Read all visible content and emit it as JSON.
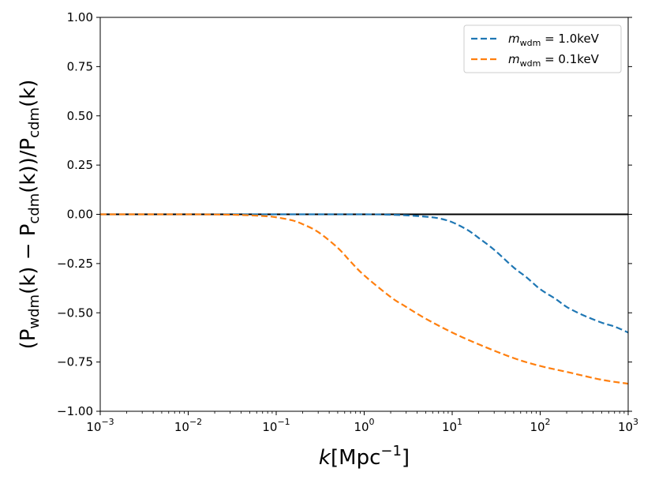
{
  "chart_data": {
    "type": "line",
    "xscale": "log",
    "xlim": [
      0.001,
      1000
    ],
    "ylim": [
      -1.0,
      1.0
    ],
    "xlabel": {
      "base": "k",
      "unit": "Mpc",
      "exp": "−1"
    },
    "ylabel": {
      "open": "(P",
      "sub1": "wdm",
      "mid1": "(k) − P",
      "sub2": "cdm",
      "mid2": "(k))/P",
      "sub3": "cdm",
      "end": "(k)"
    },
    "yticks": [
      {
        "value": 1.0,
        "label": "1.00"
      },
      {
        "value": 0.75,
        "label": "0.75"
      },
      {
        "value": 0.5,
        "label": "0.50"
      },
      {
        "value": 0.25,
        "label": "0.25"
      },
      {
        "value": 0.0,
        "label": "0.00"
      },
      {
        "value": -0.25,
        "label": "−0.25"
      },
      {
        "value": -0.5,
        "label": "−0.50"
      },
      {
        "value": -0.75,
        "label": "−0.75"
      },
      {
        "value": -1.0,
        "label": "−1.00"
      }
    ],
    "xticks": [
      {
        "value": 0.001,
        "base": "10",
        "exp": "−3"
      },
      {
        "value": 0.01,
        "base": "10",
        "exp": "−2"
      },
      {
        "value": 0.1,
        "base": "10",
        "exp": "−1"
      },
      {
        "value": 1,
        "base": "10",
        "exp": "0"
      },
      {
        "value": 10,
        "base": "10",
        "exp": "1"
      },
      {
        "value": 100,
        "base": "10",
        "exp": "2"
      },
      {
        "value": 1000,
        "base": "10",
        "exp": "3"
      }
    ],
    "reference_line": {
      "y": 0.0,
      "color": "#000000"
    },
    "series": [
      {
        "name": "m_wdm = 1.0keV",
        "legend": {
          "m": "m",
          "sub": "wdm",
          "value": " = 1.0keV"
        },
        "color": "#1f77b4",
        "style": "dashed",
        "x": [
          0.001,
          0.1,
          1,
          2,
          3,
          5,
          7,
          10,
          15,
          20,
          30,
          50,
          70,
          100,
          150,
          200,
          300,
          500,
          700,
          1000
        ],
        "y": [
          0.0,
          0.0,
          0.0,
          -0.002,
          -0.005,
          -0.012,
          -0.02,
          -0.04,
          -0.08,
          -0.12,
          -0.18,
          -0.27,
          -0.32,
          -0.38,
          -0.43,
          -0.47,
          -0.51,
          -0.55,
          -0.57,
          -0.6
        ]
      },
      {
        "name": "m_wdm = 0.1keV",
        "legend": {
          "m": "m",
          "sub": "wdm",
          "value": " = 0.1keV"
        },
        "color": "#ff7f0e",
        "style": "dashed",
        "x": [
          0.001,
          0.01,
          0.03,
          0.05,
          0.08,
          0.1,
          0.15,
          0.2,
          0.3,
          0.5,
          0.7,
          1,
          2,
          3,
          5,
          10,
          20,
          50,
          100,
          200,
          500,
          1000
        ],
        "y": [
          0.0,
          0.0,
          -0.002,
          -0.005,
          -0.01,
          -0.015,
          -0.03,
          -0.05,
          -0.09,
          -0.17,
          -0.24,
          -0.31,
          -0.42,
          -0.47,
          -0.53,
          -0.6,
          -0.66,
          -0.73,
          -0.77,
          -0.8,
          -0.84,
          -0.86
        ]
      }
    ],
    "legend_position": "top-right"
  }
}
